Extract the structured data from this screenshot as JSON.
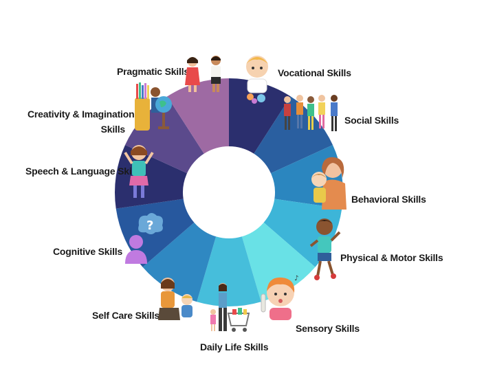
{
  "segments": [
    {
      "label": "Vocational Skills",
      "color": "#2b2f6e"
    },
    {
      "label": "Social Skills",
      "color": "#2a5fa0"
    },
    {
      "label": "Behavioral Skills",
      "color": "#2b86bf"
    },
    {
      "label": "Physical & Motor Skills",
      "color": "#3db5d8"
    },
    {
      "label": "Sensory Skills",
      "color": "#69e1e6"
    },
    {
      "label": "Daily Life Skills",
      "color": "#46bedb"
    },
    {
      "label": "Self Care Skills",
      "color": "#2f88c2"
    },
    {
      "label": "Cognitive Skills",
      "color": "#27589e"
    },
    {
      "label": "Speech & Language Skills",
      "color": "#2b2f6e"
    },
    {
      "label": "Creativity & Imagination",
      "label_line2": "Skills",
      "color": "#5b4a8c"
    },
    {
      "label": "Pragmatic Skills",
      "color": "#9e6aa3"
    }
  ]
}
